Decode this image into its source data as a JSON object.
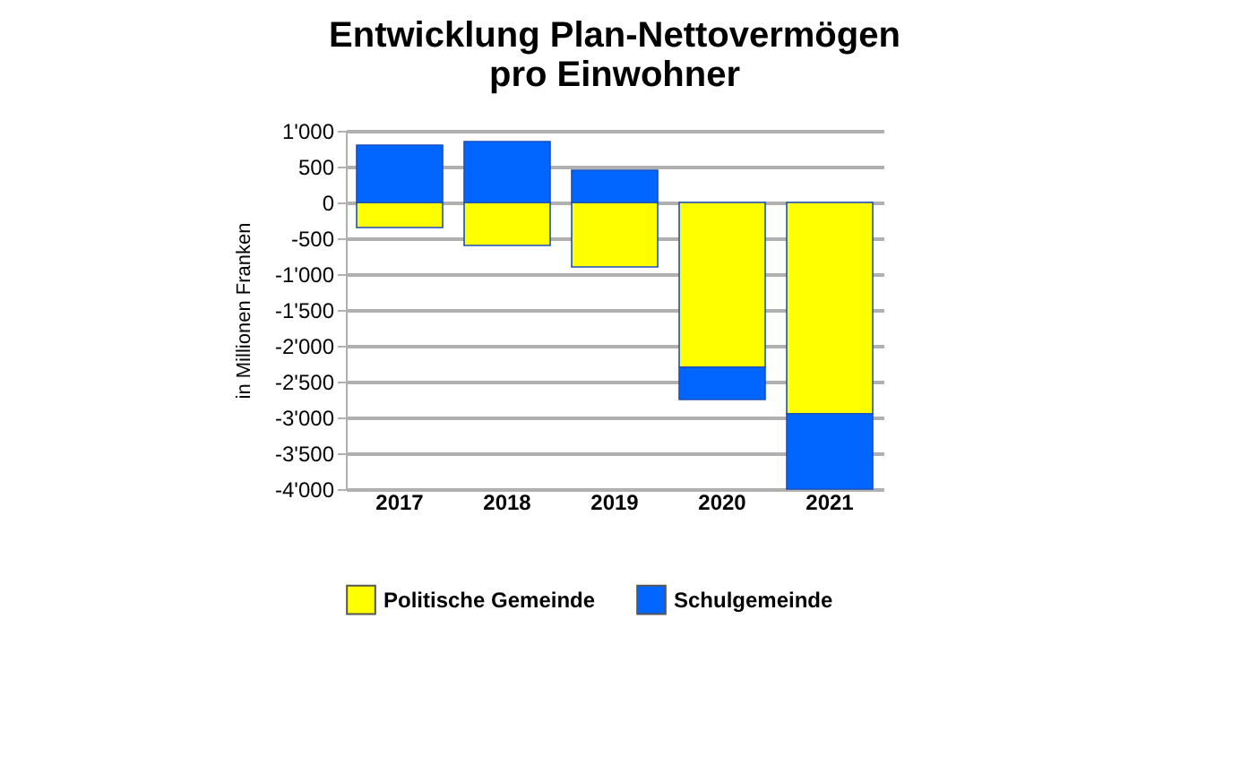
{
  "chart_data": {
    "type": "bar",
    "title": "Entwicklung Plan-Nettovermögen\npro Einwohner",
    "ylabel": "in  Millionen Franken",
    "categories": [
      "2017",
      "2018",
      "2019",
      "2020",
      "2021"
    ],
    "stacked": true,
    "series": [
      {
        "name": "Politische Gemeinde",
        "color": "#ffff00",
        "values": [
          -350,
          -600,
          -900,
          -2300,
          -2950
        ]
      },
      {
        "name": "Schulgemeinde",
        "color": "#0066ff",
        "values": [
          800,
          850,
          450,
          -450,
          -1050
        ]
      }
    ],
    "ylim": [
      -4000,
      1000
    ],
    "yticks": [
      {
        "value": -4000,
        "label": "-4'000"
      },
      {
        "value": -3500,
        "label": "-3'500"
      },
      {
        "value": -3000,
        "label": "-3'000"
      },
      {
        "value": -2500,
        "label": "-2'500"
      },
      {
        "value": -2000,
        "label": "-2'000"
      },
      {
        "value": -1500,
        "label": "-1'500"
      },
      {
        "value": -1000,
        "label": "-1'000"
      },
      {
        "value": -500,
        "label": "-500"
      },
      {
        "value": 0,
        "label": "0"
      },
      {
        "value": 500,
        "label": "500"
      },
      {
        "value": 1000,
        "label": "1'000"
      }
    ],
    "grid": "y",
    "legend": "bottom"
  }
}
